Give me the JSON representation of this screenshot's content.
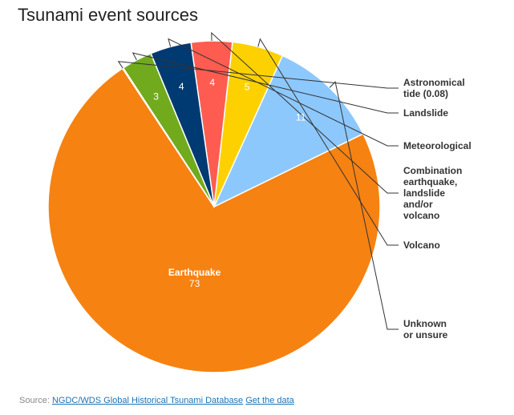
{
  "chart_data": {
    "type": "pie",
    "title": "Tsunami event sources",
    "slices": [
      {
        "label": [
          "Earthquake"
        ],
        "value": 73,
        "value_text": "73",
        "color": "#f68212",
        "placement": "inside"
      },
      {
        "label": [
          "Unknown",
          "or unsure"
        ],
        "value": 11,
        "value_text": "11",
        "color": "#8dc8fd",
        "placement": "outside"
      },
      {
        "label": [
          "Volcano"
        ],
        "value": 5,
        "value_text": "5",
        "color": "#fdd100",
        "placement": "outside"
      },
      {
        "label": [
          "Combination",
          "earthquake,",
          "landslide",
          "and/or",
          "volcano"
        ],
        "value": 4,
        "value_text": "4",
        "color": "#fe5c50",
        "placement": "outside"
      },
      {
        "label": [
          "Meteorological"
        ],
        "value": 4,
        "value_text": "4",
        "color": "#003a72",
        "placement": "outside"
      },
      {
        "label": [
          "Landslide"
        ],
        "value": 3,
        "value_text": "3",
        "color": "#71ab1d",
        "placement": "outside"
      },
      {
        "label": [
          "Astronomical",
          "tide (0.08)"
        ],
        "value": 0.08,
        "value_text": "",
        "color": "#e9b87a",
        "placement": "outside"
      }
    ]
  },
  "source": {
    "prefix": "Source: ",
    "database_link": "NGDC/WDS Global Historical Tsunami Database",
    "data_link": "Get the data"
  }
}
